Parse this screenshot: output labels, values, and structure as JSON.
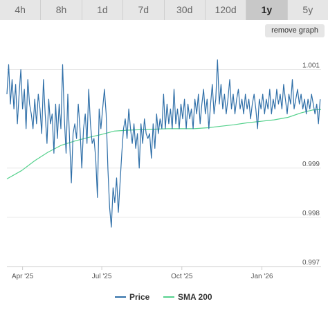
{
  "range_tabs": [
    {
      "label": "4h",
      "active": false
    },
    {
      "label": "8h",
      "active": false
    },
    {
      "label": "1d",
      "active": false
    },
    {
      "label": "7d",
      "active": false
    },
    {
      "label": "30d",
      "active": false
    },
    {
      "label": "120d",
      "active": false
    },
    {
      "label": "1y",
      "active": true
    },
    {
      "label": "5y",
      "active": false
    }
  ],
  "remove_graph_label": "remove graph",
  "colors": {
    "price": "#2f6fa8",
    "sma": "#54d18c",
    "grid": "#e6e6e6",
    "axis": "#cccccc"
  },
  "chart_data": {
    "type": "line",
    "x_ticks": [
      "Apr '25",
      "Jul '25",
      "Oct '25",
      "Jan '26"
    ],
    "y_ticks": [
      "0.997",
      "0.998",
      "0.999",
      "1.001"
    ],
    "ylim": [
      0.997,
      1.0015
    ],
    "xlim": [
      "2025-03-14",
      "2026-03-10"
    ],
    "grid": true,
    "legend_position": "bottom",
    "series": [
      {
        "name": "Price",
        "color": "#2f6fa8",
        "points": [
          [
            "2025-03-14",
            1.0005
          ],
          [
            "2025-03-16",
            1.0011
          ],
          [
            "2025-03-18",
            1.0003
          ],
          [
            "2025-03-20",
            1.0008
          ],
          [
            "2025-03-22",
            1.0002
          ],
          [
            "2025-03-24",
            1.0007
          ],
          [
            "2025-03-26",
            0.9999
          ],
          [
            "2025-03-28",
            1.0005
          ],
          [
            "2025-03-30",
            1.001
          ],
          [
            "2025-04-01",
            1.0002
          ],
          [
            "2025-04-03",
            1.0006
          ],
          [
            "2025-04-05",
            0.9998
          ],
          [
            "2025-04-07",
            1.0008
          ],
          [
            "2025-04-09",
            1.0003
          ],
          [
            "2025-04-11",
            1.0001
          ],
          [
            "2025-04-13",
            0.9998
          ],
          [
            "2025-04-15",
            1.0004
          ],
          [
            "2025-04-17",
            0.9999
          ],
          [
            "2025-04-19",
            1.0005
          ],
          [
            "2025-04-21",
            1.0002
          ],
          [
            "2025-04-23",
            0.9997
          ],
          [
            "2025-04-25",
            1.0008
          ],
          [
            "2025-04-27",
            1.0001
          ],
          [
            "2025-04-29",
            0.9995
          ],
          [
            "2025-05-01",
            1.0004
          ],
          [
            "2025-05-03",
            0.9999
          ],
          [
            "2025-05-05",
            1.0001
          ],
          [
            "2025-05-07",
            0.9993
          ],
          [
            "2025-05-09",
            1.0003
          ],
          [
            "2025-05-11",
            0.9996
          ],
          [
            "2025-05-13",
            1.0003
          ],
          [
            "2025-05-15",
            0.9998
          ],
          [
            "2025-05-17",
            1.0011
          ],
          [
            "2025-05-19",
            1.0
          ],
          [
            "2025-05-21",
            0.9993
          ],
          [
            "2025-05-23",
            1.0005
          ],
          [
            "2025-05-25",
            0.9996
          ],
          [
            "2025-05-27",
            0.9987
          ],
          [
            "2025-05-29",
            0.9997
          ],
          [
            "2025-05-31",
            0.9999
          ],
          [
            "2025-06-02",
            0.9996
          ],
          [
            "2025-06-04",
            1.0003
          ],
          [
            "2025-06-06",
            0.9998
          ],
          [
            "2025-06-08",
            0.999
          ],
          [
            "2025-06-10",
            0.9998
          ],
          [
            "2025-06-12",
            1.0001
          ],
          [
            "2025-06-14",
            0.9995
          ],
          [
            "2025-06-16",
            1.0006
          ],
          [
            "2025-06-18",
            0.9999
          ],
          [
            "2025-06-20",
            0.9995
          ],
          [
            "2025-06-22",
            0.9996
          ],
          [
            "2025-06-24",
            0.9992
          ],
          [
            "2025-06-26",
            0.9984
          ],
          [
            "2025-06-28",
            1.0002
          ],
          [
            "2025-06-30",
            0.9998
          ],
          [
            "2025-07-02",
            1.0002
          ],
          [
            "2025-07-04",
            1.0006
          ],
          [
            "2025-07-06",
            1.0001
          ],
          [
            "2025-07-08",
            0.999
          ],
          [
            "2025-07-10",
            0.9982
          ],
          [
            "2025-07-12",
            0.9978
          ],
          [
            "2025-07-14",
            0.9986
          ],
          [
            "2025-07-16",
            0.9983
          ],
          [
            "2025-07-18",
            0.9988
          ],
          [
            "2025-07-20",
            0.9981
          ],
          [
            "2025-07-22",
            0.9987
          ],
          [
            "2025-07-24",
            0.9993
          ],
          [
            "2025-07-26",
            0.9998
          ],
          [
            "2025-07-28",
            1.0
          ],
          [
            "2025-07-30",
            0.9996
          ],
          [
            "2025-08-01",
            1.0002
          ],
          [
            "2025-08-03",
            0.9998
          ],
          [
            "2025-08-05",
            0.9995
          ],
          [
            "2025-08-07",
            0.9999
          ],
          [
            "2025-08-09",
            0.9994
          ],
          [
            "2025-08-11",
            0.9997
          ],
          [
            "2025-08-13",
            0.999
          ],
          [
            "2025-08-15",
            0.9999
          ],
          [
            "2025-08-17",
            0.9995
          ],
          [
            "2025-08-19",
            1.0
          ],
          [
            "2025-08-21",
            0.9997
          ],
          [
            "2025-08-23",
            0.9996
          ],
          [
            "2025-08-25",
            0.9997
          ],
          [
            "2025-08-27",
            0.9992
          ],
          [
            "2025-08-29",
            0.9999
          ],
          [
            "2025-08-31",
            0.9994
          ],
          [
            "2025-09-02",
            1.0001
          ],
          [
            "2025-09-04",
            0.9997
          ],
          [
            "2025-09-06",
            1.0
          ],
          [
            "2025-09-08",
            0.9998
          ],
          [
            "2025-09-10",
            1.0005
          ],
          [
            "2025-09-12",
            0.9998
          ],
          [
            "2025-09-14",
            1.0003
          ],
          [
            "2025-09-16",
            0.9999
          ],
          [
            "2025-09-18",
            1.0002
          ],
          [
            "2025-09-20",
            0.9998
          ],
          [
            "2025-09-22",
            1.0006
          ],
          [
            "2025-09-24",
            0.9999
          ],
          [
            "2025-09-26",
            1.0002
          ],
          [
            "2025-09-28",
            0.9998
          ],
          [
            "2025-09-30",
            1.0003
          ],
          [
            "2025-10-02",
            1.0
          ],
          [
            "2025-10-04",
            1.0004
          ],
          [
            "2025-10-06",
            0.9998
          ],
          [
            "2025-10-08",
            1.0003
          ],
          [
            "2025-10-10",
            1.0
          ],
          [
            "2025-10-12",
            1.0002
          ],
          [
            "2025-10-14",
            0.9998
          ],
          [
            "2025-10-16",
            1.0004
          ],
          [
            "2025-10-18",
            1.0001
          ],
          [
            "2025-10-20",
            1.0005
          ],
          [
            "2025-10-22",
            0.9999
          ],
          [
            "2025-10-24",
            1.0003
          ],
          [
            "2025-10-26",
            1.0006
          ],
          [
            "2025-10-28",
            1.0001
          ],
          [
            "2025-10-30",
            1.0004
          ],
          [
            "2025-11-01",
            0.9998
          ],
          [
            "2025-11-03",
            1.0003
          ],
          [
            "2025-11-05",
            1.0007
          ],
          [
            "2025-11-07",
            1.0001
          ],
          [
            "2025-11-09",
            1.0004
          ],
          [
            "2025-11-11",
            1.0012
          ],
          [
            "2025-11-13",
            1.0003
          ],
          [
            "2025-11-15",
            1.0007
          ],
          [
            "2025-11-17",
            1.0002
          ],
          [
            "2025-11-19",
            1.0005
          ],
          [
            "2025-11-21",
            1.0001
          ],
          [
            "2025-11-23",
            1.0004
          ],
          [
            "2025-11-25",
            1.0008
          ],
          [
            "2025-11-27",
            1.0002
          ],
          [
            "2025-11-29",
            1.0005
          ],
          [
            "2025-12-01",
            1.0001
          ],
          [
            "2025-12-03",
            1.0004
          ],
          [
            "2025-12-05",
            1.0006
          ],
          [
            "2025-12-07",
            1.0002
          ],
          [
            "2025-12-09",
            1.0004
          ],
          [
            "2025-12-11",
            1.0001
          ],
          [
            "2025-12-13",
            1.0005
          ],
          [
            "2025-12-15",
            1.0002
          ],
          [
            "2025-12-17",
            1.0004
          ],
          [
            "2025-12-19",
            1.0
          ],
          [
            "2025-12-21",
            1.0003
          ],
          [
            "2025-12-23",
            1.0005
          ],
          [
            "2025-12-25",
            1.0002
          ],
          [
            "2025-12-27",
            0.9998
          ],
          [
            "2025-12-29",
            1.0004
          ],
          [
            "2025-12-31",
            1.0002
          ],
          [
            "2026-01-02",
            1.0005
          ],
          [
            "2026-01-04",
            1.0001
          ],
          [
            "2026-01-06",
            1.0004
          ],
          [
            "2026-01-08",
            1.0002
          ],
          [
            "2026-01-10",
            1.0006
          ],
          [
            "2026-01-12",
            1.0001
          ],
          [
            "2026-01-14",
            1.0004
          ],
          [
            "2026-01-16",
            1.0002
          ],
          [
            "2026-01-18",
            1.0006
          ],
          [
            "2026-01-20",
            1.0003
          ],
          [
            "2026-01-22",
            1.0005
          ],
          [
            "2026-01-24",
            1.0002
          ],
          [
            "2026-01-26",
            1.0007
          ],
          [
            "2026-01-28",
            1.0004
          ],
          [
            "2026-01-30",
            1.0001
          ],
          [
            "2026-02-01",
            1.0005
          ],
          [
            "2026-02-03",
            1.0003
          ],
          [
            "2026-02-05",
            1.0008
          ],
          [
            "2026-02-07",
            1.0002
          ],
          [
            "2026-02-09",
            1.0004
          ],
          [
            "2026-02-11",
            1.0006
          ],
          [
            "2026-02-13",
            1.0003
          ],
          [
            "2026-02-15",
            1.0005
          ],
          [
            "2026-02-17",
            1.0002
          ],
          [
            "2026-02-19",
            1.0004
          ],
          [
            "2026-02-21",
            1.0001
          ],
          [
            "2026-02-23",
            1.0004
          ],
          [
            "2026-02-25",
            1.0002
          ],
          [
            "2026-02-27",
            1.0005
          ],
          [
            "2026-03-01",
            1.0003
          ],
          [
            "2026-03-03",
            1.0001
          ],
          [
            "2026-03-05",
            1.0003
          ],
          [
            "2026-03-07",
            0.9999
          ],
          [
            "2026-03-09",
            1.0004
          ]
        ]
      },
      {
        "name": "SMA 200",
        "color": "#54d18c",
        "points": [
          [
            "2025-03-14",
            0.99878
          ],
          [
            "2025-03-31",
            0.99895
          ],
          [
            "2025-04-15",
            0.99915
          ],
          [
            "2025-04-30",
            0.99932
          ],
          [
            "2025-05-15",
            0.99946
          ],
          [
            "2025-05-31",
            0.99955
          ],
          [
            "2025-06-15",
            0.99962
          ],
          [
            "2025-06-30",
            0.99968
          ],
          [
            "2025-07-15",
            0.99975
          ],
          [
            "2025-07-31",
            0.99977
          ],
          [
            "2025-08-15",
            0.99978
          ],
          [
            "2025-08-31",
            0.99979
          ],
          [
            "2025-09-15",
            0.9998
          ],
          [
            "2025-09-30",
            0.9998
          ],
          [
            "2025-10-15",
            0.9998
          ],
          [
            "2025-10-31",
            0.99982
          ],
          [
            "2025-11-15",
            0.99985
          ],
          [
            "2025-11-30",
            0.99988
          ],
          [
            "2025-12-15",
            0.99992
          ],
          [
            "2025-12-31",
            0.99995
          ],
          [
            "2026-01-15",
            0.99998
          ],
          [
            "2026-01-31",
            1.00003
          ],
          [
            "2026-02-15",
            1.00012
          ],
          [
            "2026-02-28",
            1.00018
          ],
          [
            "2026-03-10",
            1.00019
          ]
        ]
      }
    ]
  }
}
